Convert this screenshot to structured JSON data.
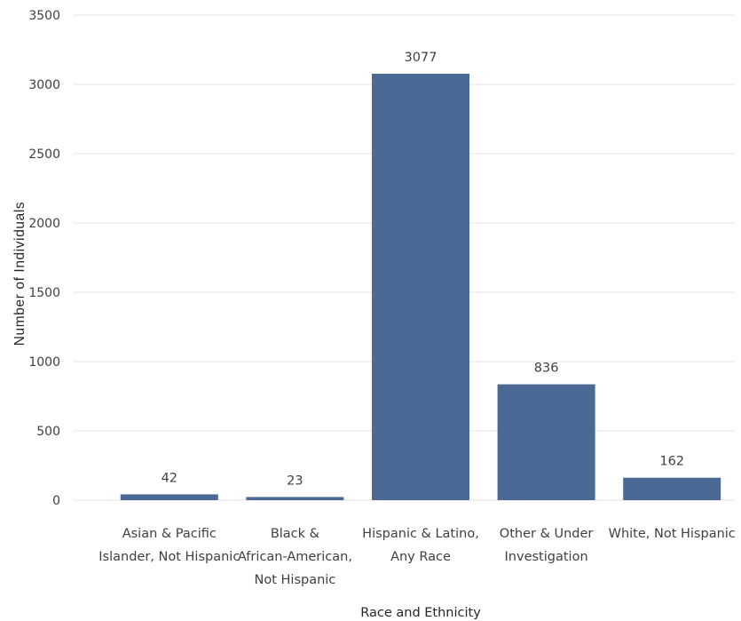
{
  "chart_data": {
    "type": "bar",
    "title": "",
    "xlabel": "Race and Ethnicity",
    "ylabel": "Number of Individuals",
    "ylim": [
      0,
      3500
    ],
    "yticks": [
      0,
      500,
      1000,
      1500,
      2000,
      2500,
      3000,
      3500
    ],
    "grid": true,
    "legend": "none",
    "bar_color": "#4a6a95",
    "categories": [
      [
        "Asian & Pacific",
        "Islander, Not Hispanic"
      ],
      [
        "Black &",
        "African-American,",
        "Not Hispanic"
      ],
      [
        "Hispanic & Latino,",
        "Any Race"
      ],
      [
        "Other & Under",
        "Investigation"
      ],
      [
        "White, Not Hispanic"
      ]
    ],
    "values": [
      42,
      23,
      3077,
      836,
      162
    ],
    "data_labels": [
      "42",
      "23",
      "3077",
      "836",
      "162"
    ]
  }
}
